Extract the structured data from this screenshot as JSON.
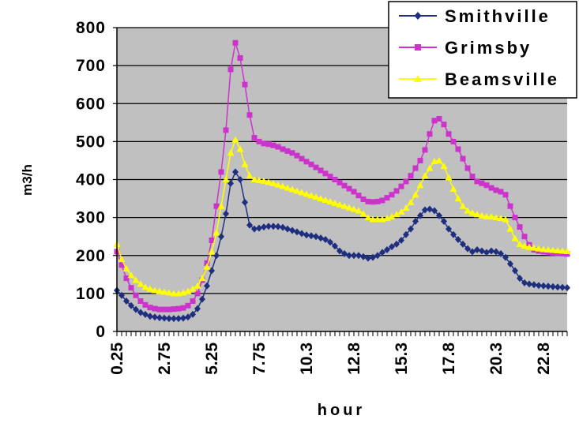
{
  "chart_data": {
    "type": "line",
    "title": "",
    "xlabel": "hour",
    "ylabel": "m3/h",
    "ylim": [
      0,
      800
    ],
    "xlim": [
      0.25,
      24.0
    ],
    "yticks": [
      0,
      100,
      200,
      300,
      400,
      500,
      600,
      700,
      800
    ],
    "xtick_labels": [
      "0.25",
      "2.75",
      "5.25",
      "7.75",
      "10.3",
      "12.8",
      "15.3",
      "17.8",
      "20.3",
      "22.8"
    ],
    "plot_background": "#c0c0c0",
    "grid": true,
    "legend_position": "top-right",
    "x": [
      0.25,
      0.5,
      0.75,
      1.0,
      1.25,
      1.5,
      1.75,
      2.0,
      2.25,
      2.5,
      2.75,
      3.0,
      3.25,
      3.5,
      3.75,
      4.0,
      4.25,
      4.5,
      4.75,
      5.0,
      5.25,
      5.5,
      5.75,
      6.0,
      6.25,
      6.5,
      6.75,
      7.0,
      7.25,
      7.5,
      7.75,
      8.0,
      8.25,
      8.5,
      8.75,
      9.0,
      9.25,
      9.5,
      9.75,
      10.0,
      10.25,
      10.5,
      10.75,
      11.0,
      11.25,
      11.5,
      11.75,
      12.0,
      12.25,
      12.5,
      12.75,
      13.0,
      13.25,
      13.5,
      13.75,
      14.0,
      14.25,
      14.5,
      14.75,
      15.0,
      15.25,
      15.5,
      15.75,
      16.0,
      16.25,
      16.5,
      16.75,
      17.0,
      17.25,
      17.5,
      17.75,
      18.0,
      18.25,
      18.5,
      18.75,
      19.0,
      19.25,
      19.5,
      19.75,
      20.0,
      20.25,
      20.5,
      20.75,
      21.0,
      21.25,
      21.5,
      21.75,
      22.0,
      22.25,
      22.5,
      22.75,
      23.0,
      23.25,
      23.5,
      23.75,
      24.0
    ],
    "series": [
      {
        "name": "Smithville",
        "color": "#1f2f7f",
        "marker": "diamond",
        "values": [
          108,
          95,
          80,
          68,
          58,
          50,
          45,
          40,
          38,
          36,
          35,
          34,
          34,
          34,
          35,
          38,
          45,
          60,
          85,
          120,
          160,
          200,
          250,
          310,
          390,
          420,
          400,
          340,
          280,
          270,
          272,
          275,
          277,
          277,
          276,
          274,
          270,
          266,
          262,
          258,
          254,
          252,
          250,
          246,
          242,
          235,
          225,
          212,
          205,
          200,
          200,
          200,
          197,
          193,
          195,
          200,
          208,
          215,
          223,
          230,
          240,
          255,
          270,
          290,
          305,
          320,
          322,
          318,
          305,
          290,
          270,
          255,
          242,
          230,
          218,
          210,
          215,
          212,
          208,
          212,
          210,
          205,
          195,
          178,
          160,
          140,
          128,
          125,
          123,
          121,
          120,
          119,
          118,
          117,
          116,
          115
        ]
      },
      {
        "name": "Grimsby",
        "color": "#cc33cc",
        "marker": "square",
        "values": [
          210,
          175,
          140,
          115,
          95,
          80,
          70,
          63,
          60,
          58,
          58,
          58,
          59,
          60,
          62,
          68,
          80,
          100,
          135,
          180,
          240,
          330,
          420,
          530,
          690,
          760,
          720,
          650,
          570,
          510,
          500,
          495,
          493,
          490,
          486,
          480,
          475,
          470,
          463,
          455,
          447,
          440,
          432,
          424,
          416,
          408,
          400,
          392,
          384,
          376,
          368,
          358,
          348,
          342,
          341,
          342,
          345,
          352,
          360,
          370,
          382,
          395,
          410,
          430,
          450,
          478,
          520,
          555,
          560,
          545,
          520,
          500,
          480,
          455,
          430,
          408,
          395,
          390,
          385,
          378,
          372,
          368,
          360,
          330,
          300,
          275,
          250,
          228,
          215,
          212,
          210,
          208,
          207,
          206,
          205,
          204
        ]
      },
      {
        "name": "Beamsville",
        "color": "#ffff00",
        "marker": "triangle",
        "values": [
          230,
          190,
          165,
          148,
          135,
          125,
          117,
          112,
          108,
          106,
          104,
          102,
          100,
          100,
          102,
          106,
          112,
          120,
          140,
          170,
          210,
          260,
          330,
          400,
          470,
          505,
          480,
          440,
          410,
          400,
          398,
          396,
          393,
          390,
          386,
          382,
          378,
          374,
          370,
          366,
          362,
          358,
          354,
          350,
          346,
          342,
          338,
          334,
          330,
          326,
          322,
          318,
          310,
          300,
          295,
          295,
          295,
          298,
          302,
          308,
          315,
          325,
          340,
          360,
          385,
          410,
          430,
          448,
          450,
          435,
          405,
          375,
          350,
          330,
          318,
          312,
          308,
          305,
          302,
          302,
          300,
          298,
          295,
          270,
          245,
          230,
          225,
          222,
          220,
          218,
          216,
          215,
          214,
          213,
          212,
          211
        ]
      }
    ]
  }
}
